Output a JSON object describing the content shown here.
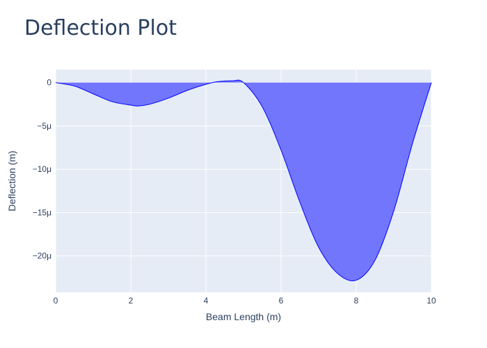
{
  "chart_data": {
    "type": "area",
    "title": "Deflection Plot",
    "xlabel": "Beam Length (m)",
    "ylabel": "Deflection (m)",
    "xlim": [
      0,
      10
    ],
    "ylim": [
      -2.42e-05,
      1.5e-06
    ],
    "x_ticks": [
      0,
      2,
      4,
      6,
      8,
      10
    ],
    "x_tick_labels": [
      "0",
      "2",
      "4",
      "6",
      "8",
      "10"
    ],
    "y_ticks": [
      0,
      -5e-06,
      -1e-05,
      -1.5e-05,
      -2e-05
    ],
    "y_tick_labels": [
      "0",
      "−5μ",
      "−10μ",
      "−15μ",
      "−20μ"
    ],
    "grid": true,
    "colors": {
      "fill": "#7276fc",
      "line": "#0000ff",
      "plot_bg": "#e5ecf6",
      "grid": "#ffffff",
      "text": "#2a3f5f"
    },
    "series": [
      {
        "x": [
          0,
          0.5,
          1,
          1.5,
          2,
          2.2,
          2.5,
          3,
          3.5,
          4,
          4.3,
          4.7,
          5,
          5.5,
          6,
          6.5,
          7,
          7.5,
          8,
          8.5,
          9,
          9.5,
          10
        ],
        "y": [
          0,
          -4e-07,
          -1.3e-06,
          -2.2e-06,
          -2.6e-06,
          -2.7e-06,
          -2.5e-06,
          -1.8e-06,
          -9e-07,
          -2e-07,
          1e-07,
          2e-07,
          0,
          -2.8e-06,
          -7.8e-06,
          -1.38e-05,
          -1.9e-05,
          -2.2e-05,
          -2.28e-05,
          -2.05e-05,
          -1.48e-05,
          -7e-06,
          0
        ]
      }
    ]
  }
}
